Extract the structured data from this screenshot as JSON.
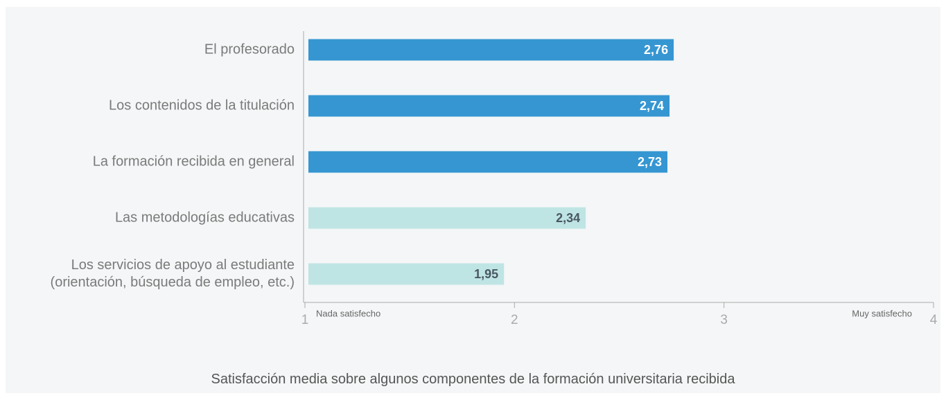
{
  "chart_data": {
    "type": "bar",
    "orientation": "horizontal",
    "title": "Satisfacción media sobre algunos componentes de la formación universitaria recibida",
    "categories": [
      "El profesorado",
      "Los contenidos de la titulación",
      "La formación recibida en general",
      "Las metodologías educativas",
      "Los servicios de apoyo al estudiante\n(orientación, búsqueda de empleo, etc.)"
    ],
    "values": [
      2.76,
      2.74,
      2.73,
      2.34,
      1.95
    ],
    "value_labels": [
      "2,76",
      "2,74",
      "2,73",
      "2,34",
      "1,95"
    ],
    "colors": [
      "#3596d2",
      "#3596d2",
      "#3596d2",
      "#bfe4e4",
      "#bfe4e4"
    ],
    "xlim": [
      1,
      4
    ],
    "xticks": [
      1,
      2,
      3,
      4
    ],
    "annotations": [
      "Nada satisfecho",
      "Muy satisfecho"
    ]
  }
}
